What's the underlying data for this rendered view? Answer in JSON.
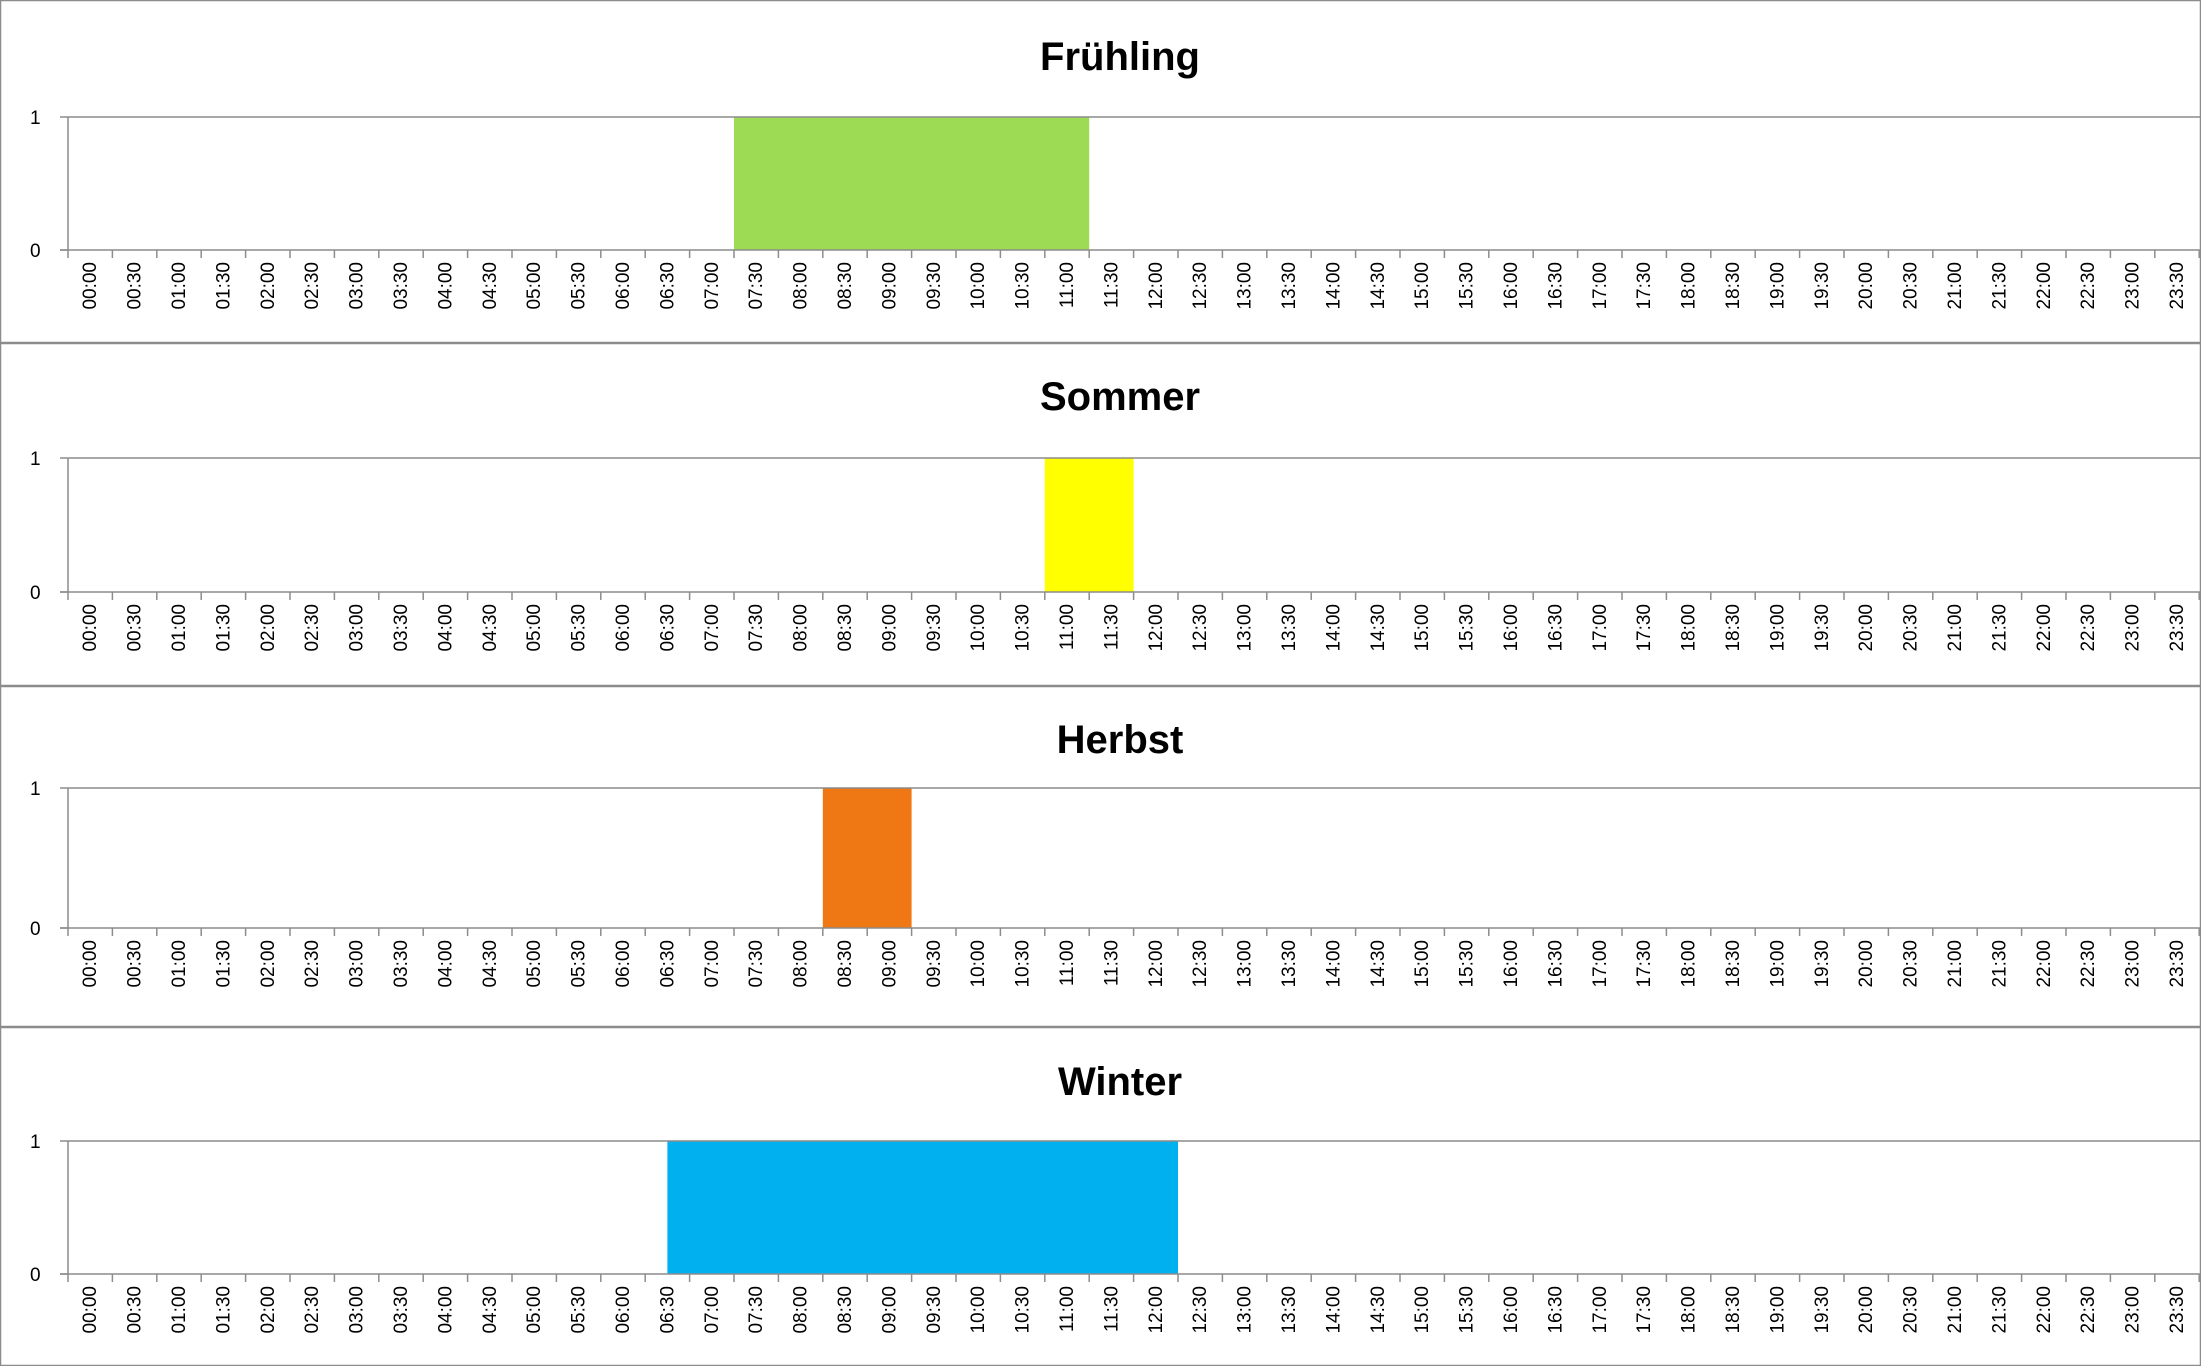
{
  "chart_data": [
    {
      "type": "bar",
      "title": "Frühling",
      "color": "#9edb54",
      "x_ticks": [
        "00:00",
        "00:30",
        "01:00",
        "01:30",
        "02:00",
        "02:30",
        "03:00",
        "03:30",
        "04:00",
        "04:30",
        "05:00",
        "05:30",
        "06:00",
        "06:30",
        "07:00",
        "07:30",
        "08:00",
        "08:30",
        "09:00",
        "09:30",
        "10:00",
        "10:30",
        "11:00",
        "11:30",
        "12:00",
        "12:30",
        "13:00",
        "13:30",
        "14:00",
        "14:30",
        "15:00",
        "15:30",
        "16:00",
        "16:30",
        "17:00",
        "17:30",
        "18:00",
        "18:30",
        "19:00",
        "19:30",
        "20:00",
        "20:30",
        "21:00",
        "21:30",
        "22:00",
        "22:30",
        "23:00",
        "23:30"
      ],
      "y_ticks": [
        "0",
        "1"
      ],
      "ylim": [
        0,
        1
      ],
      "grid": false,
      "legend": "none",
      "active": {
        "start": "07:30",
        "end": "11:30",
        "value": 1
      }
    },
    {
      "type": "bar",
      "title": "Sommer",
      "color": "#ffff00",
      "x_ticks": [
        "00:00",
        "00:30",
        "01:00",
        "01:30",
        "02:00",
        "02:30",
        "03:00",
        "03:30",
        "04:00",
        "04:30",
        "05:00",
        "05:30",
        "06:00",
        "06:30",
        "07:00",
        "07:30",
        "08:00",
        "08:30",
        "09:00",
        "09:30",
        "10:00",
        "10:30",
        "11:00",
        "11:30",
        "12:00",
        "12:30",
        "13:00",
        "13:30",
        "14:00",
        "14:30",
        "15:00",
        "15:30",
        "16:00",
        "16:30",
        "17:00",
        "17:30",
        "18:00",
        "18:30",
        "19:00",
        "19:30",
        "20:00",
        "20:30",
        "21:00",
        "21:30",
        "22:00",
        "22:30",
        "23:00",
        "23:30"
      ],
      "y_ticks": [
        "0",
        "1"
      ],
      "ylim": [
        0,
        1
      ],
      "grid": false,
      "legend": "none",
      "active": {
        "start": "11:00",
        "end": "12:00",
        "value": 1
      }
    },
    {
      "type": "bar",
      "title": "Herbst",
      "color": "#f07814",
      "x_ticks": [
        "00:00",
        "00:30",
        "01:00",
        "01:30",
        "02:00",
        "02:30",
        "03:00",
        "03:30",
        "04:00",
        "04:30",
        "05:00",
        "05:30",
        "06:00",
        "06:30",
        "07:00",
        "07:30",
        "08:00",
        "08:30",
        "09:00",
        "09:30",
        "10:00",
        "10:30",
        "11:00",
        "11:30",
        "12:00",
        "12:30",
        "13:00",
        "13:30",
        "14:00",
        "14:30",
        "15:00",
        "15:30",
        "16:00",
        "16:30",
        "17:00",
        "17:30",
        "18:00",
        "18:30",
        "19:00",
        "19:30",
        "20:00",
        "20:30",
        "21:00",
        "21:30",
        "22:00",
        "22:30",
        "23:00",
        "23:30"
      ],
      "y_ticks": [
        "0",
        "1"
      ],
      "ylim": [
        0,
        1
      ],
      "grid": false,
      "legend": "none",
      "active": {
        "start": "08:30",
        "end": "09:30",
        "value": 1
      }
    },
    {
      "type": "bar",
      "title": "Winter",
      "color": "#00b0ef",
      "x_ticks": [
        "00:00",
        "00:30",
        "01:00",
        "01:30",
        "02:00",
        "02:30",
        "03:00",
        "03:30",
        "04:00",
        "04:30",
        "05:00",
        "05:30",
        "06:00",
        "06:30",
        "07:00",
        "07:30",
        "08:00",
        "08:30",
        "09:00",
        "09:30",
        "10:00",
        "10:30",
        "11:00",
        "11:30",
        "12:00",
        "12:30",
        "13:00",
        "13:30",
        "14:00",
        "14:30",
        "15:00",
        "15:30",
        "16:00",
        "16:30",
        "17:00",
        "17:30",
        "18:00",
        "18:30",
        "19:00",
        "19:30",
        "20:00",
        "20:30",
        "21:00",
        "21:30",
        "22:00",
        "22:30",
        "23:00",
        "23:30"
      ],
      "y_ticks": [
        "0",
        "1"
      ],
      "ylim": [
        0,
        1
      ],
      "grid": false,
      "legend": "none",
      "active": {
        "start": "06:45",
        "end": "12:30",
        "value": 1
      }
    }
  ],
  "colors": {
    "background": "#ffffff",
    "axis": "#8c8c8c",
    "panel_border": "#8c8c8c",
    "text": "#000000"
  }
}
